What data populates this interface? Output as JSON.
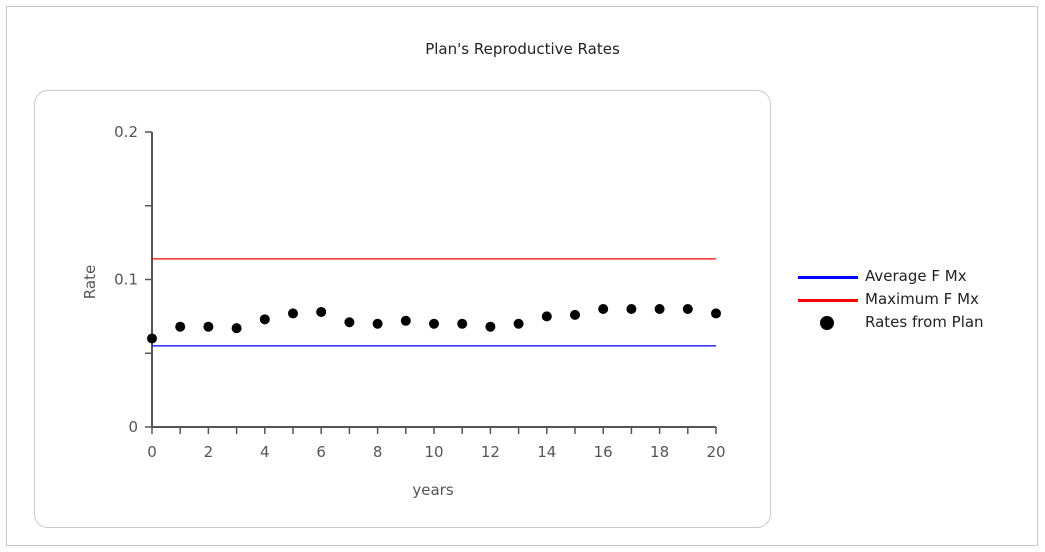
{
  "chart_data": {
    "type": "scatter",
    "title": "Plan's Reproductive Rates",
    "xlabel": "years",
    "ylabel": "Rate",
    "xlim": [
      0,
      20
    ],
    "ylim": [
      0,
      0.2
    ],
    "x_ticks": [
      0,
      2,
      4,
      6,
      8,
      10,
      12,
      14,
      16,
      18,
      20
    ],
    "x_tick_labels": [
      "0",
      "2",
      "4",
      "6",
      "8",
      "10",
      "12",
      "14",
      "16",
      "18",
      "20"
    ],
    "y_ticks": [
      0,
      0.1,
      0.2
    ],
    "y_tick_labels": [
      "0",
      "0.1",
      "0.2"
    ],
    "grid": false,
    "legend_position": "right",
    "series": [
      {
        "name": "Average F Mx",
        "kind": "hline",
        "color": "#0000ff",
        "x": [
          0,
          20
        ],
        "values": [
          0.055,
          0.055
        ]
      },
      {
        "name": "Maximum F Mx",
        "kind": "hline",
        "color": "#ff0000",
        "x": [
          0,
          20
        ],
        "values": [
          0.114,
          0.114
        ]
      },
      {
        "name": "Rates from Plan",
        "kind": "points",
        "color": "#000000",
        "x": [
          0,
          1,
          2,
          3,
          4,
          5,
          6,
          7,
          8,
          9,
          10,
          11,
          12,
          13,
          14,
          15,
          16,
          17,
          18,
          19,
          20
        ],
        "values": [
          0.06,
          0.068,
          0.068,
          0.067,
          0.073,
          0.077,
          0.078,
          0.071,
          0.07,
          0.072,
          0.07,
          0.07,
          0.068,
          0.07,
          0.075,
          0.076,
          0.08,
          0.08,
          0.08,
          0.08,
          0.077
        ]
      }
    ]
  }
}
